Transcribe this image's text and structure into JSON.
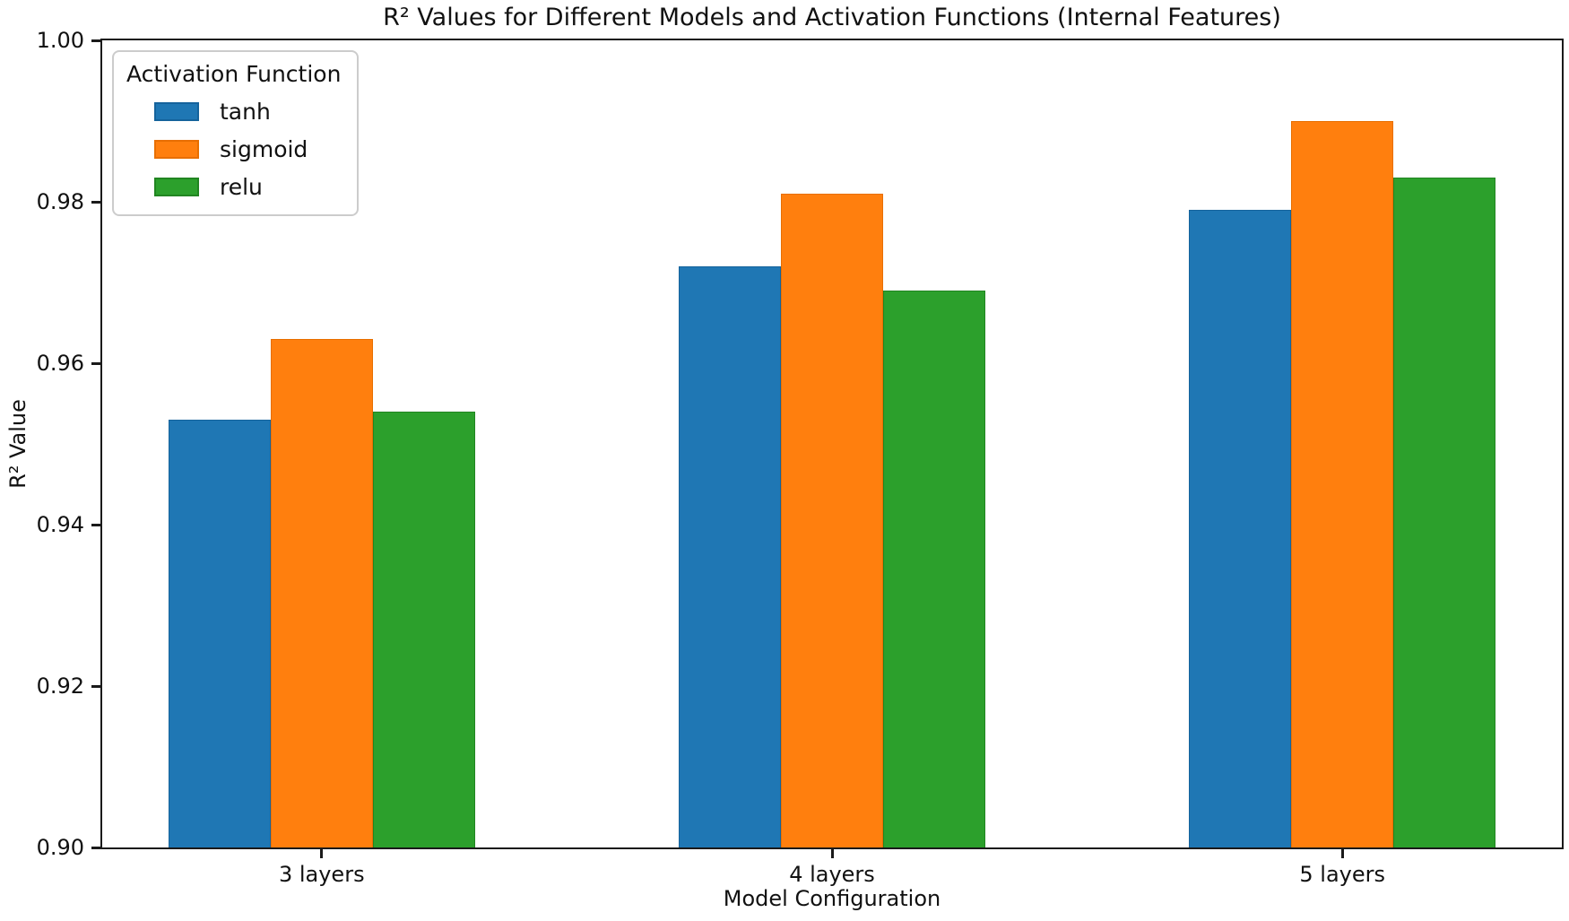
{
  "chart_data": {
    "type": "bar",
    "title": "R² Values for Different Models and Activation Functions (Internal Features)",
    "xlabel": "Model Configuration",
    "ylabel": "R² Value",
    "categories": [
      "3 layers",
      "4 layers",
      "5 layers"
    ],
    "series": [
      {
        "name": "tanh",
        "color": "#1f77b4",
        "edge_color": "#15639c",
        "values": [
          0.953,
          0.972,
          0.979
        ]
      },
      {
        "name": "sigmoid",
        "color": "#ff7f0e",
        "edge_color": "#e86f00",
        "values": [
          0.963,
          0.981,
          0.99
        ]
      },
      {
        "name": "relu",
        "color": "#2ca02c",
        "edge_color": "#218521",
        "values": [
          0.954,
          0.969,
          0.983
        ]
      }
    ],
    "ylim": [
      0.9,
      1.0
    ],
    "yticks": [
      "1.00",
      "0.98",
      "0.96",
      "0.94",
      "0.92",
      "0.90"
    ],
    "xlim": [
      -0.43,
      2.43
    ],
    "bar_width": 0.2,
    "legend_title": "Activation Function",
    "legend_position": "upper-left",
    "grid": false,
    "background_color": "#ffffff",
    "text_color": "#111111"
  }
}
